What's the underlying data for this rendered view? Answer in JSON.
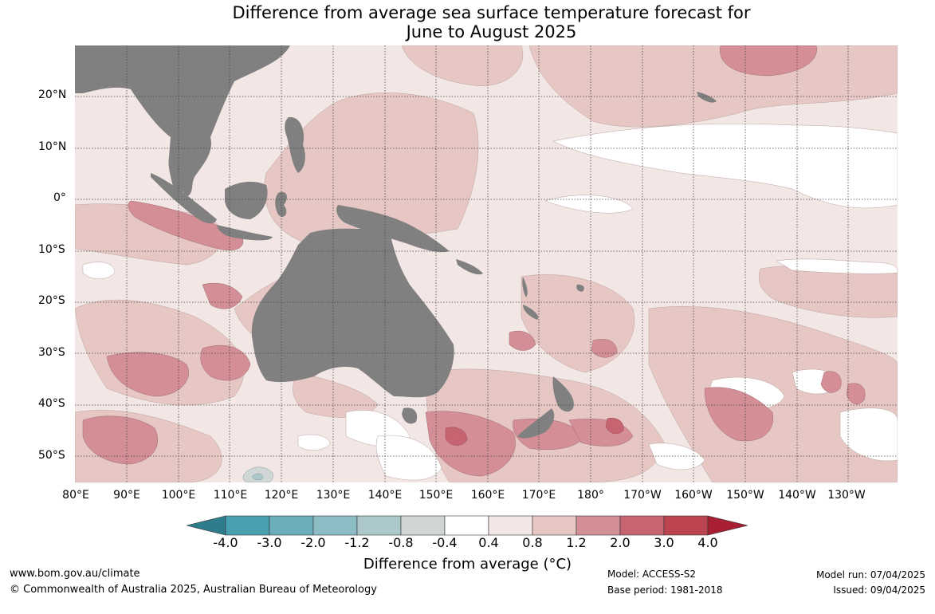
{
  "title_line1": "Difference from average sea surface temperature forecast for",
  "title_line2": "June to August 2025",
  "lat_labels": [
    "20°N",
    "10°N",
    "0°",
    "10°S",
    "20°S",
    "30°S",
    "40°S",
    "50°S"
  ],
  "lon_labels": [
    "80°E",
    "90°E",
    "100°E",
    "110°E",
    "120°E",
    "130°E",
    "140°E",
    "150°E",
    "160°E",
    "170°E",
    "180°",
    "170°W",
    "160°W",
    "150°W",
    "140°W",
    "130°W"
  ],
  "colorbar": {
    "ticks": [
      "-4.0",
      "-3.0",
      "-2.0",
      "-1.2",
      "-0.8",
      "-0.4",
      "0.4",
      "0.8",
      "1.2",
      "2.0",
      "3.0",
      "4.0"
    ],
    "colors": [
      "#2e7d8c",
      "#48a0b2",
      "#6aaebc",
      "#8cbcc4",
      "#acc8cb",
      "#d0d6d6",
      "#ffffff",
      "#f3e7e6",
      "#e6c7c4",
      "#d48e96",
      "#c66472",
      "#bd4552",
      "#a81f34"
    ],
    "title": "Difference from average (°C)"
  },
  "map_colors": {
    "land": "#808080",
    "ocean_base": "#f3e7e6",
    "neutral": "#ffffff",
    "warm_light": "#e6c7c4",
    "warm_mid": "#d48e96",
    "warm_strong": "#c66472",
    "cool_light": "#d0d6d6",
    "cool_mid": "#acc8cb"
  },
  "footer": {
    "url": "www.bom.gov.au/climate",
    "copyright": "© Commonwealth of Australia 2025, Australian Bureau of Meteorology",
    "model": "Model: ACCESS-S2",
    "base_period": "Base period: 1981-2018",
    "model_run": "Model run: 07/04/2025",
    "issued": "Issued: 09/04/2025"
  }
}
